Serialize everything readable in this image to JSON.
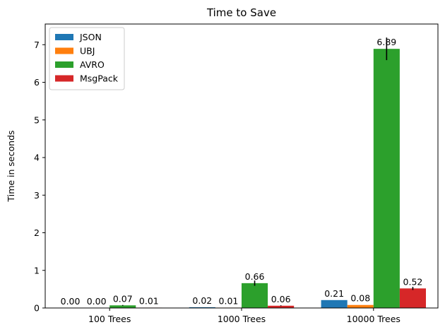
{
  "chart_data": {
    "type": "bar",
    "title": "Time to Save",
    "xlabel": "",
    "ylabel": "Time in seconds",
    "categories": [
      "100 Trees",
      "1000 Trees",
      "10000 Trees"
    ],
    "ylim": [
      0,
      7.55
    ],
    "yticks": [
      0,
      1,
      2,
      3,
      4,
      5,
      6,
      7
    ],
    "grid": false,
    "legend_position": "top-left",
    "series": [
      {
        "name": "JSON",
        "color": "#1f77b4",
        "values": [
          0.0,
          0.02,
          0.21
        ],
        "labels": [
          "0.00",
          "0.02",
          "0.21"
        ],
        "errors": [
          0,
          0,
          0
        ]
      },
      {
        "name": "UBJ",
        "color": "#ff7f0e",
        "values": [
          0.0,
          0.01,
          0.08
        ],
        "labels": [
          "0.00",
          "0.01",
          "0.08"
        ],
        "errors": [
          0,
          0,
          0
        ]
      },
      {
        "name": "AVRO",
        "color": "#2ca02c",
        "values": [
          0.07,
          0.66,
          6.89
        ],
        "labels": [
          "0.07",
          "0.66",
          "6.89"
        ],
        "errors": [
          0.01,
          0.07,
          0.3
        ]
      },
      {
        "name": "MsgPack",
        "color": "#d62728",
        "values": [
          0.01,
          0.06,
          0.52
        ],
        "labels": [
          "0.01",
          "0.06",
          "0.52"
        ],
        "errors": [
          0,
          0.01,
          0.04
        ]
      }
    ]
  }
}
